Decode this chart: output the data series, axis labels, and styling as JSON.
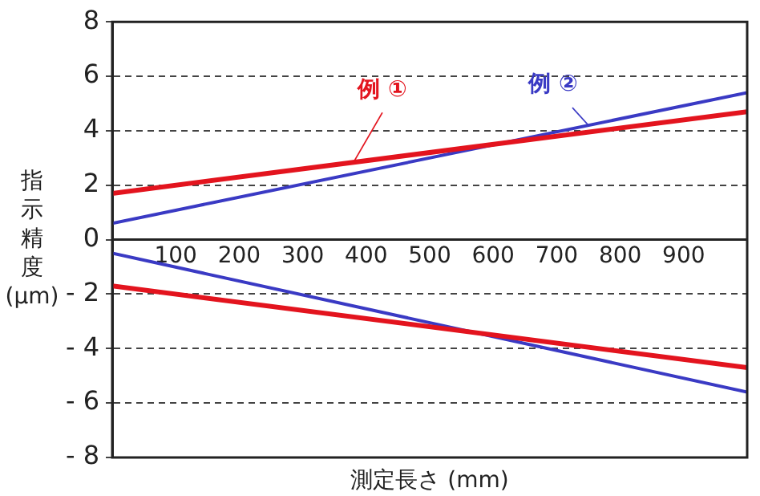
{
  "chart_data": {
    "type": "line",
    "xlabel": "測定長さ (mm)",
    "ylabel": "指示精度 (μm)",
    "x": [
      0,
      1000
    ],
    "series": [
      {
        "name": "例 ①",
        "color": "#e3141e",
        "values": [
          1.7,
          4.7
        ]
      },
      {
        "name": "例 ②",
        "color": "#3a3ac4",
        "values": [
          0.6,
          5.4
        ]
      },
      {
        "color": "#e3141e",
        "values": [
          -1.7,
          -4.7
        ]
      },
      {
        "color": "#3a3ac4",
        "values": [
          -0.5,
          -5.6
        ]
      }
    ],
    "xlim": [
      0,
      1000
    ],
    "xticks": [
      100,
      200,
      300,
      400,
      500,
      600,
      700,
      800,
      900
    ],
    "ylim": [
      -8,
      8
    ],
    "yticks": [
      8,
      6,
      4,
      2,
      0,
      {
        "value": -2,
        "label": "- 2"
      },
      {
        "value": -4,
        "label": "- 4"
      },
      {
        "value": -6,
        "label": "- 6"
      },
      {
        "value": -8,
        "label": "- 8"
      }
    ],
    "grid": "y",
    "legend": false,
    "marker": "none",
    "line_style": "solid"
  }
}
